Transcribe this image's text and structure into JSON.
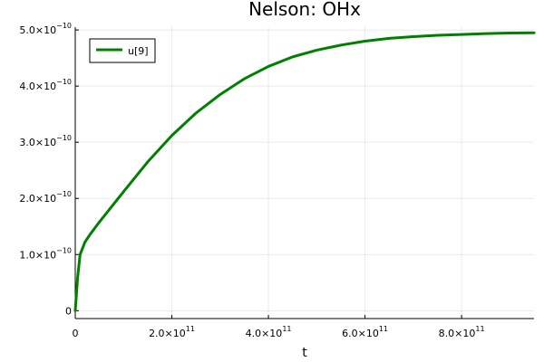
{
  "chart_data": {
    "type": "line",
    "title": "Nelson: OHx",
    "xlabel": "t",
    "ylabel": "",
    "xlim": [
      0,
      950000000000.0
    ],
    "ylim": [
      -1.4e-11,
      5.05e-10
    ],
    "grid": true,
    "legend_position": "top-left",
    "x_ticks": [
      {
        "value": 0,
        "mantissa": "0",
        "exp": ""
      },
      {
        "value": 200000000000.0,
        "mantissa": "2.0×10",
        "exp": "11"
      },
      {
        "value": 400000000000.0,
        "mantissa": "4.0×10",
        "exp": "11"
      },
      {
        "value": 600000000000.0,
        "mantissa": "6.0×10",
        "exp": "11"
      },
      {
        "value": 800000000000.0,
        "mantissa": "8.0×10",
        "exp": "11"
      }
    ],
    "y_ticks": [
      {
        "value": 0,
        "mantissa": "0",
        "exp": ""
      },
      {
        "value": 1e-10,
        "mantissa": "1.0×10",
        "exp": "−10"
      },
      {
        "value": 2e-10,
        "mantissa": "2.0×10",
        "exp": "−10"
      },
      {
        "value": 3e-10,
        "mantissa": "3.0×10",
        "exp": "−10"
      },
      {
        "value": 4e-10,
        "mantissa": "4.0×10",
        "exp": "−10"
      },
      {
        "value": 5e-10,
        "mantissa": "5.0×10",
        "exp": "−10"
      }
    ],
    "series": [
      {
        "name": "u[9]",
        "color": "#008000",
        "x": [
          0,
          5000000000.0,
          10000000000.0,
          20000000000.0,
          30000000000.0,
          50000000000.0,
          75000000000.0,
          100000000000.0,
          150000000000.0,
          200000000000.0,
          250000000000.0,
          300000000000.0,
          350000000000.0,
          400000000000.0,
          450000000000.0,
          500000000000.0,
          550000000000.0,
          600000000000.0,
          650000000000.0,
          700000000000.0,
          750000000000.0,
          800000000000.0,
          850000000000.0,
          900000000000.0,
          950000000000.0
        ],
        "y": [
          0,
          6e-11,
          1e-10,
          1.22e-10,
          1.35e-10,
          1.58e-10,
          1.85e-10,
          2.12e-10,
          2.65e-10,
          3.12e-10,
          3.52e-10,
          3.85e-10,
          4.13e-10,
          4.35e-10,
          4.52e-10,
          4.64e-10,
          4.73e-10,
          4.8e-10,
          4.85e-10,
          4.88e-10,
          4.905e-10,
          4.92e-10,
          4.935e-10,
          4.945e-10,
          4.95e-10
        ]
      }
    ]
  }
}
